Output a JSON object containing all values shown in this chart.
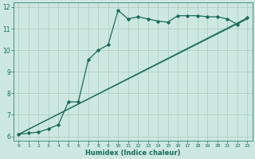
{
  "xlabel": "Humidex (Indice chaleur)",
  "bg_color": "#cce8e0",
  "grid_color": "#aaccbb",
  "line_color": "#1a6b5a",
  "xlim": [
    -0.5,
    23.5
  ],
  "ylim": [
    5.8,
    12.2
  ],
  "xticks": [
    0,
    1,
    2,
    3,
    4,
    5,
    6,
    7,
    8,
    9,
    10,
    11,
    12,
    13,
    14,
    15,
    16,
    17,
    18,
    19,
    20,
    21,
    22,
    23
  ],
  "yticks": [
    6,
    7,
    8,
    9,
    10,
    11,
    12
  ],
  "curve1_x": [
    0,
    1,
    2,
    3,
    4,
    5,
    6,
    7,
    8,
    9,
    10,
    11,
    12,
    13,
    14,
    15,
    16,
    17,
    18,
    19,
    20,
    21,
    22,
    23
  ],
  "curve1_y": [
    6.1,
    6.15,
    6.2,
    6.35,
    6.55,
    7.6,
    7.6,
    9.55,
    10.0,
    10.25,
    11.85,
    11.45,
    11.55,
    11.45,
    11.35,
    11.3,
    11.6,
    11.6,
    11.6,
    11.55,
    11.55,
    11.45,
    11.2,
    11.5
  ],
  "curve2_x": [
    0,
    23
  ],
  "curve2_y": [
    6.1,
    11.5
  ],
  "curve3_x": [
    0,
    23
  ],
  "curve3_y": [
    6.1,
    11.45
  ]
}
